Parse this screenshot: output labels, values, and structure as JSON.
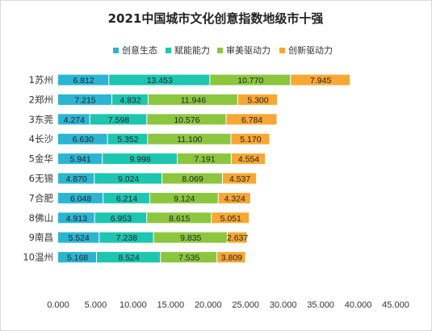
{
  "chart_data": {
    "type": "bar",
    "orientation": "horizontal",
    "stacked": true,
    "title": "2021中国城市文化创意指数地级市十强",
    "xlabel": "",
    "ylabel": "",
    "xlim": [
      0,
      45
    ],
    "x_ticks": [
      "0.000",
      "5.000",
      "10.000",
      "15.000",
      "20.000",
      "25.000",
      "30.000",
      "35.000",
      "40.000",
      "45.000"
    ],
    "grid": false,
    "legend_position": "top",
    "categories": [
      "1苏州",
      "2郑州",
      "3东莞",
      "4长沙",
      "5金华",
      "6无锡",
      "7合肥",
      "8佛山",
      "9南昌",
      "10温州"
    ],
    "series": [
      {
        "name": "创意生态",
        "color": "#2bb5d3",
        "values": [
          6.812,
          7.215,
          4.274,
          6.63,
          5.941,
          4.87,
          6.048,
          4.913,
          5.524,
          5.168
        ],
        "labels": [
          "6.812",
          "7.215",
          "4.274",
          "6.630",
          "5.941",
          "4.870",
          "6.048",
          "4.913",
          "5.524",
          "5.168"
        ]
      },
      {
        "name": "赋能能力",
        "color": "#1cc6b0",
        "values": [
          13.453,
          4.832,
          7.598,
          5.352,
          9.998,
          9.024,
          6.214,
          6.953,
          7.238,
          8.524
        ],
        "labels": [
          "13.453",
          "4.832",
          "7.598",
          "5.352",
          "9.998",
          "9.024",
          "6.214",
          "6.953",
          "7.238",
          "8.524"
        ]
      },
      {
        "name": "审美驱动力",
        "color": "#8cc63f",
        "values": [
          10.77,
          11.946,
          10.576,
          11.1,
          7.191,
          8.069,
          9.124,
          8.615,
          9.835,
          7.535
        ],
        "labels": [
          "10.770",
          "11.946",
          "10.576",
          "11.100",
          "7.191",
          "8.069",
          "9.124",
          "8.615",
          "9.835",
          "7.535"
        ]
      },
      {
        "name": "创新驱动力",
        "color": "#f7a733",
        "values": [
          7.945,
          5.3,
          6.784,
          5.17,
          4.554,
          4.537,
          4.324,
          5.051,
          2.637,
          3.809
        ],
        "labels": [
          "7.945",
          "5.300",
          "6.784",
          "5.170",
          "4.554",
          "4.537",
          "4.324",
          "5.051",
          "2.637",
          "3.809"
        ]
      }
    ]
  }
}
